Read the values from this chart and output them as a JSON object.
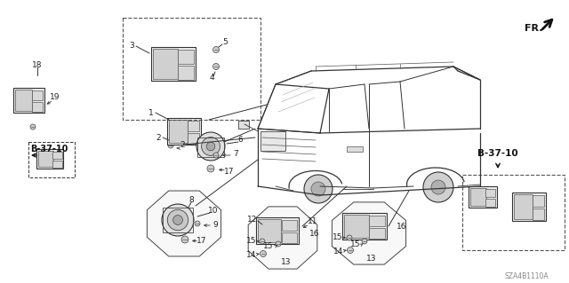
{
  "background_color": "#ffffff",
  "diagram_code": "SZA4B1110A",
  "ref_label": "B-37-10",
  "fr_label": "FR.",
  "line_color": "#333333",
  "text_color": "#222222",
  "part_color": "#888888",
  "component_fill": "#e8e8e8",
  "component_edge": "#444444"
}
